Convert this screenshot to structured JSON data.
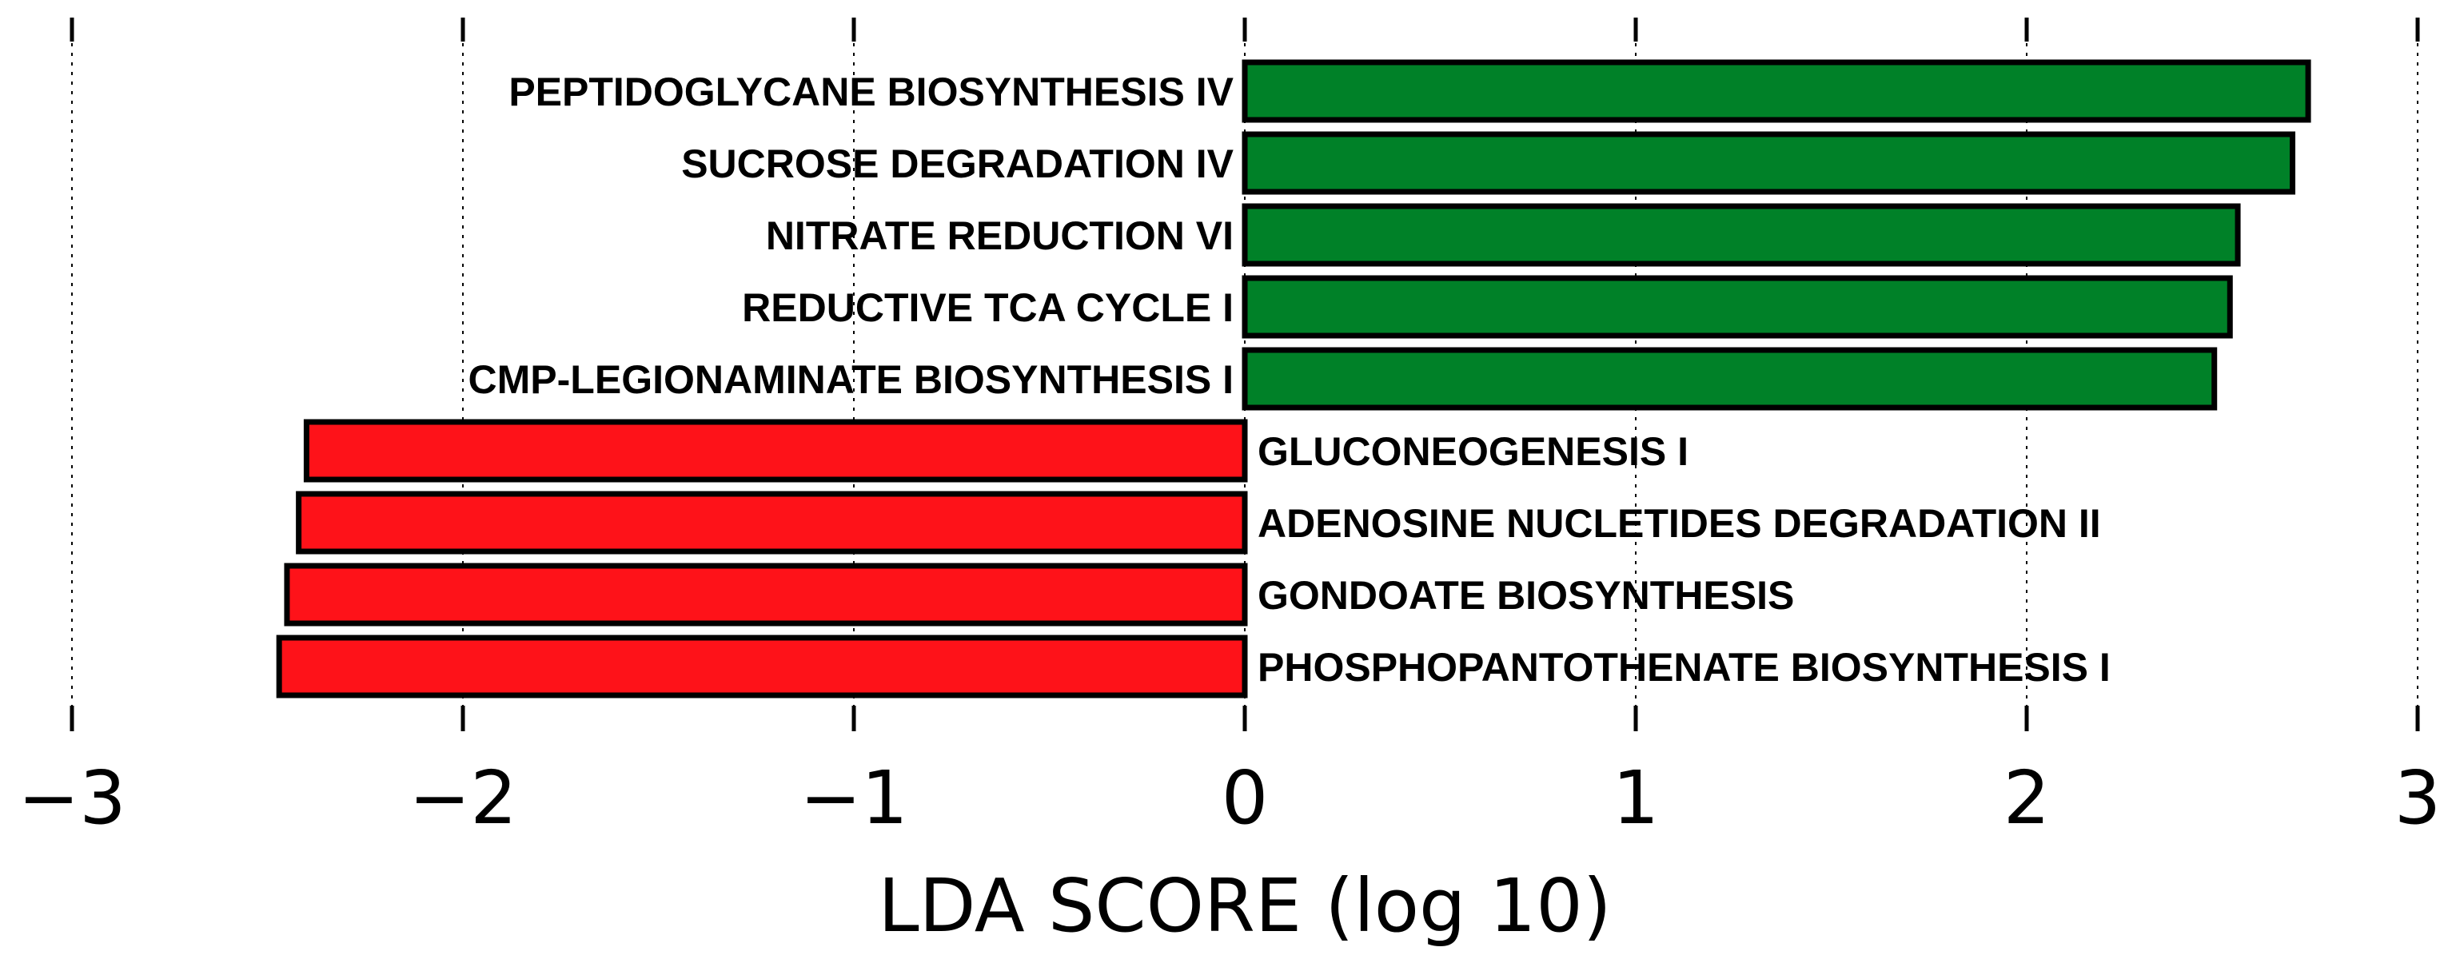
{
  "chart_data": {
    "type": "bar",
    "orientation": "horizontal",
    "xlabel": "LDA SCORE (log 10)",
    "ylabel": "",
    "xlim": [
      -3,
      3
    ],
    "xticks": [
      -3,
      -2,
      -1,
      0,
      1,
      2,
      3
    ],
    "xtick_labels": [
      "−3",
      "−2",
      "−1",
      "0",
      "1",
      "2",
      "3"
    ],
    "grid": true,
    "colors": {
      "positive": "#008128",
      "negative": "#fe1219"
    },
    "bars": [
      {
        "label": "PEPTIDOGLYCANE BIOSYNTHESIS IV",
        "value": 2.72
      },
      {
        "label": "SUCROSE DEGRADATION IV",
        "value": 2.68
      },
      {
        "label": "NITRATE REDUCTION VI",
        "value": 2.54
      },
      {
        "label": "REDUCTIVE TCA CYCLE I",
        "value": 2.52
      },
      {
        "label": "CMP-LEGIONAMINATE BIOSYNTHESIS I",
        "value": 2.48
      },
      {
        "label": "GLUCONEOGENESIS I",
        "value": -2.4
      },
      {
        "label": "ADENOSINE NUCLETIDES DEGRADATION II",
        "value": -2.42
      },
      {
        "label": "GONDOATE BIOSYNTHESIS",
        "value": -2.45
      },
      {
        "label": "PHOSPHOPANTOTHENATE BIOSYNTHESIS I",
        "value": -2.47
      }
    ]
  }
}
